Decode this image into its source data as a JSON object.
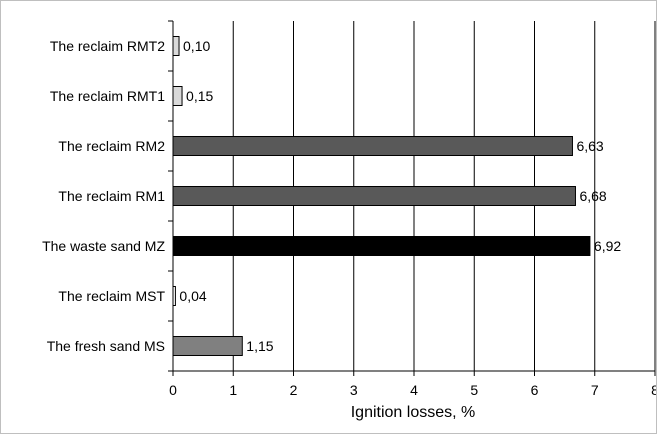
{
  "chart_data": {
    "type": "bar",
    "orientation": "horizontal",
    "categories": [
      "The reclaim RMT2",
      "The reclaim RMT1",
      "The reclaim RM2",
      "The reclaim RM1",
      "The waste sand MZ",
      "The reclaim MST",
      "The fresh sand MS"
    ],
    "values": [
      0.1,
      0.15,
      6.63,
      6.68,
      6.92,
      0.04,
      1.15
    ],
    "value_labels": [
      "0,10",
      "0,15",
      "6,63",
      "6,68",
      "6,92",
      "0,04",
      "1,15"
    ],
    "bar_colors": [
      "#d9d9d9",
      "#d9d9d9",
      "#595959",
      "#595959",
      "#000000",
      "#ffffff",
      "#808080"
    ],
    "xlabel": "Ignition losses, %",
    "ylabel": "",
    "title": "",
    "xlim": [
      0,
      8
    ],
    "xticks": [
      "0",
      "1",
      "2",
      "3",
      "4",
      "5",
      "6",
      "7",
      "8"
    ],
    "grid": "vertical",
    "legend": "none"
  }
}
